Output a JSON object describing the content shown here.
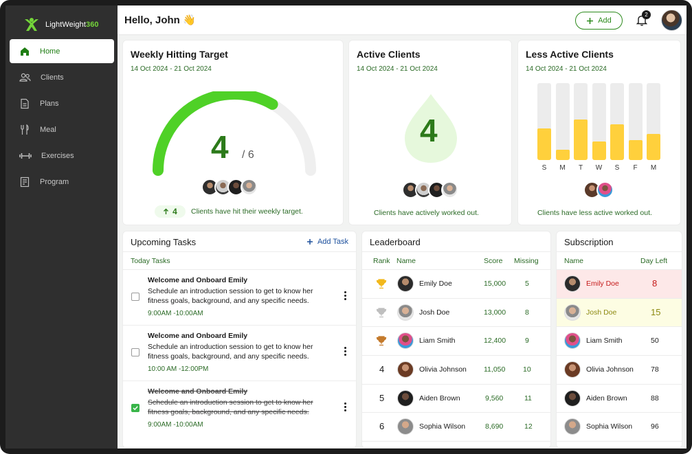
{
  "brand": {
    "name_prefix": "LightWeight",
    "name_suffix": "360"
  },
  "sidebar": {
    "items": [
      {
        "label": "Home",
        "icon": "home-icon",
        "active": true
      },
      {
        "label": "Clients",
        "icon": "users-icon"
      },
      {
        "label": "Plans",
        "icon": "document-icon"
      },
      {
        "label": "Meal",
        "icon": "fork-knife-icon"
      },
      {
        "label": "Exercises",
        "icon": "dumbbell-icon"
      },
      {
        "label": "Program",
        "icon": "clipboard-icon"
      }
    ]
  },
  "header": {
    "greeting": "Hello, John 👋",
    "add_label": "Add",
    "notification_count": "2"
  },
  "weekly": {
    "title": "Weekly Hitting Target",
    "date": "14 Oct 2024 - 21 Oct 2024",
    "value": "4",
    "total": "/ 6",
    "progress": 0.667,
    "delta": "4",
    "note": "Clients have hit their weekly target."
  },
  "active": {
    "title": "Active Clients",
    "date": "14 Oct 2024 - 21 Oct 2024",
    "value": "4",
    "note": "Clients have actively worked out."
  },
  "less_active": {
    "title": "Less Active Clients",
    "date": "14 Oct 2024 - 21 Oct 2024",
    "days": [
      "S",
      "M",
      "T",
      "W",
      "S",
      "F",
      "M"
    ],
    "levels": [
      0.41,
      0.13,
      0.53,
      0.24,
      0.46,
      0.26,
      0.34
    ],
    "note": "Clients have less active worked out."
  },
  "tasks": {
    "title": "Upcoming Tasks",
    "add_label": "Add Task",
    "section": "Today Tasks",
    "items": [
      {
        "title": "Welcome and Onboard Emily",
        "desc": "Schedule an introduction session to get to know her fitness goals, background, and any specific needs.",
        "time": "9:00AM -10:00AM",
        "done": false
      },
      {
        "title": "Welcome and Onboard Emily",
        "desc": "Schedule an introduction session to get to know her fitness goals, background, and any specific needs.",
        "time": "10:00 AM -12:00PM",
        "done": false
      },
      {
        "title": "Welcome and Onboard Emily",
        "desc": "Schedule an introduction session to get to know her fitness goals, background, and any specific needs.",
        "time": "9:00AM -10:00AM",
        "done": true
      }
    ]
  },
  "leaderboard": {
    "title": "Leaderboard",
    "headers": {
      "rank": "Rank",
      "name": "Name",
      "score": "Score",
      "missing": "Missing"
    },
    "rows": [
      {
        "rank": "",
        "trophy": "gold",
        "name": "Emily Doe",
        "score": "15,000",
        "missing": "5"
      },
      {
        "rank": "",
        "trophy": "silver",
        "name": "Josh Doe",
        "score": "13,000",
        "missing": "8"
      },
      {
        "rank": "",
        "trophy": "bronze",
        "name": "Liam Smith",
        "score": "12,400",
        "missing": "9"
      },
      {
        "rank": "4",
        "trophy": "",
        "name": "Olivia Johnson",
        "score": "11,050",
        "missing": "10"
      },
      {
        "rank": "5",
        "trophy": "",
        "name": "Aiden Brown",
        "score": "9,560",
        "missing": "11"
      },
      {
        "rank": "6",
        "trophy": "",
        "name": "Sophia Wilson",
        "score": "8,690",
        "missing": "12"
      }
    ]
  },
  "subscription": {
    "title": "Subscription",
    "headers": {
      "name": "Name",
      "days": "Day Left"
    },
    "rows": [
      {
        "name": "Emily Doe",
        "days": "8",
        "status": "red"
      },
      {
        "name": "Josh Doe",
        "days": "15",
        "status": "yellow"
      },
      {
        "name": "Liam Smith",
        "days": "50",
        "status": ""
      },
      {
        "name": "Olivia Johnson",
        "days": "78",
        "status": ""
      },
      {
        "name": "Aiden Brown",
        "days": "88",
        "status": ""
      },
      {
        "name": "Sophia Wilson",
        "days": "96",
        "status": ""
      }
    ]
  },
  "colors": {
    "brand_green": "#74d43a",
    "accent_green": "#2c7a1a",
    "bar_yellow": "#ffd03c"
  }
}
